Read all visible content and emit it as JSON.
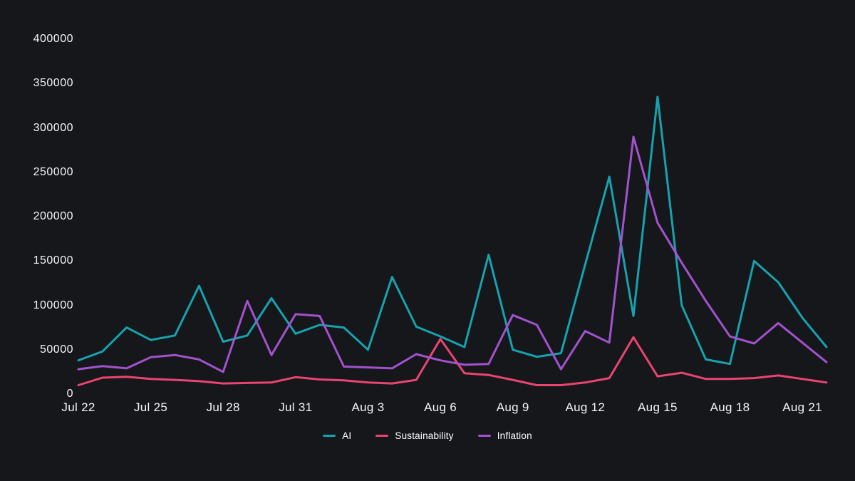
{
  "chart_data": {
    "type": "line",
    "title": "",
    "xlabel": "",
    "ylabel": "",
    "grid": false,
    "legend_position": "bottom-center",
    "ylim": [
      0,
      400000
    ],
    "y_ticks": [
      0,
      50000,
      100000,
      150000,
      200000,
      250000,
      300000,
      350000,
      400000
    ],
    "x": [
      "Jul 22",
      "Jul 23",
      "Jul 24",
      "Jul 25",
      "Jul 26",
      "Jul 27",
      "Jul 28",
      "Jul 29",
      "Jul 30",
      "Jul 31",
      "Aug 1",
      "Aug 2",
      "Aug 3",
      "Aug 4",
      "Aug 5",
      "Aug 6",
      "Aug 7",
      "Aug 8",
      "Aug 9",
      "Aug 10",
      "Aug 11",
      "Aug 12",
      "Aug 13",
      "Aug 14",
      "Aug 15",
      "Aug 16",
      "Aug 17",
      "Aug 18",
      "Aug 19",
      "Aug 20",
      "Aug 21",
      "Aug 22"
    ],
    "x_tick_labels": [
      "Jul 22",
      "Jul 25",
      "Jul 28",
      "Jul 31",
      "Aug 3",
      "Aug 6",
      "Aug 9",
      "Aug 12",
      "Aug 15",
      "Aug 18",
      "Aug 21"
    ],
    "x_tick_step": 3,
    "series": [
      {
        "name": "AI",
        "color": "#17a2ae",
        "values": [
          38000,
          48000,
          75000,
          61000,
          66000,
          122000,
          59000,
          66000,
          108000,
          68000,
          78000,
          75000,
          50000,
          132000,
          76000,
          65000,
          53000,
          157000,
          50000,
          42000,
          46000,
          146000,
          245000,
          88000,
          335000,
          100000,
          39000,
          34000,
          150000,
          126000,
          86000,
          53000
        ]
      },
      {
        "name": "Sustainability",
        "color": "#ea4471",
        "values": [
          10000,
          18500,
          19500,
          17000,
          16000,
          14500,
          12000,
          12500,
          13000,
          19000,
          16500,
          15500,
          13000,
          12000,
          16000,
          62000,
          23500,
          21500,
          16000,
          10000,
          10000,
          13000,
          18000,
          64000,
          20000,
          24000,
          17000,
          17000,
          18000,
          21000,
          17000,
          13000
        ]
      },
      {
        "name": "Inflation",
        "color": "#a252ce",
        "values": [
          28000,
          31500,
          29000,
          41500,
          44000,
          39000,
          25000,
          105000,
          44000,
          90000,
          88000,
          31000,
          30000,
          29000,
          45000,
          38000,
          33000,
          34000,
          89000,
          78000,
          28000,
          71000,
          58000,
          290000,
          193000,
          148000,
          105000,
          65000,
          57000,
          80000,
          58000,
          36000
        ]
      }
    ]
  },
  "colors": {
    "background": "#15171b",
    "axis_text": "#f4f5f6",
    "legend_text": "#ffffff"
  }
}
